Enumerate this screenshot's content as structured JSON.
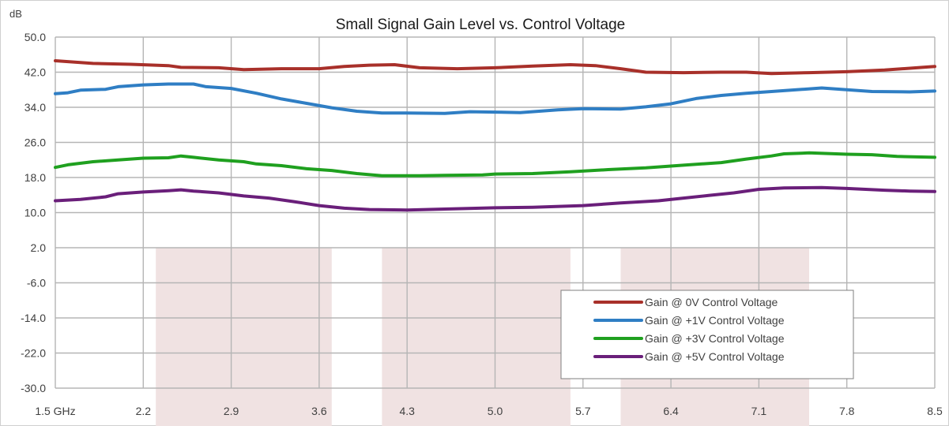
{
  "chart_data": {
    "type": "line",
    "title": "Small Signal Gain Level vs. Control Voltage",
    "ylabel": "dB",
    "xlabel": "",
    "xlim": [
      1.5,
      8.5
    ],
    "ylim": [
      -30.0,
      50.0
    ],
    "grid": true,
    "legend_position": "bottom-right",
    "x_ticks": [
      {
        "value": 1.5,
        "label": "1.5 GHz"
      },
      {
        "value": 2.2,
        "label": "2.2"
      },
      {
        "value": 2.9,
        "label": "2.9"
      },
      {
        "value": 3.6,
        "label": "3.6"
      },
      {
        "value": 4.3,
        "label": "4.3"
      },
      {
        "value": 5.0,
        "label": "5.0"
      },
      {
        "value": 5.7,
        "label": "5.7"
      },
      {
        "value": 6.4,
        "label": "6.4"
      },
      {
        "value": 7.1,
        "label": "7.1"
      },
      {
        "value": 7.8,
        "label": "7.8"
      },
      {
        "value": 8.5,
        "label": "8.5"
      }
    ],
    "y_ticks": [
      {
        "value": 50,
        "label": "50.0"
      },
      {
        "value": 42,
        "label": "42.0"
      },
      {
        "value": 34,
        "label": "34.0"
      },
      {
        "value": 26,
        "label": "26.0"
      },
      {
        "value": 18,
        "label": "18.0"
      },
      {
        "value": 10,
        "label": "10.0"
      },
      {
        "value": 2,
        "label": "2.0"
      },
      {
        "value": -6,
        "label": "-6.0"
      },
      {
        "value": -14,
        "label": "-14.0"
      },
      {
        "value": -22,
        "label": "-22.0"
      },
      {
        "value": -30,
        "label": "-30.0"
      }
    ],
    "shaded_bands": [
      {
        "x": [
          2.3,
          3.7
        ],
        "y": [
          -30,
          2
        ],
        "color": "#f0e2e2"
      },
      {
        "x": [
          4.1,
          5.6
        ],
        "y": [
          -30,
          2
        ],
        "color": "#f0e2e2"
      },
      {
        "x": [
          6.0,
          7.5
        ],
        "y": [
          -30,
          2
        ],
        "color": "#f0e2e2"
      }
    ],
    "series": [
      {
        "name": "Gain @ 0V Control Voltage",
        "color": "#a8302a",
        "points": [
          [
            1.5,
            44.6
          ],
          [
            1.8,
            44.0
          ],
          [
            2.1,
            43.8
          ],
          [
            2.4,
            43.5
          ],
          [
            2.5,
            43.1
          ],
          [
            2.8,
            43.0
          ],
          [
            3.0,
            42.6
          ],
          [
            3.3,
            42.8
          ],
          [
            3.6,
            42.8
          ],
          [
            3.8,
            43.3
          ],
          [
            4.0,
            43.6
          ],
          [
            4.2,
            43.7
          ],
          [
            4.4,
            43.0
          ],
          [
            4.7,
            42.8
          ],
          [
            5.0,
            43.0
          ],
          [
            5.3,
            43.4
          ],
          [
            5.6,
            43.7
          ],
          [
            5.8,
            43.5
          ],
          [
            6.0,
            42.8
          ],
          [
            6.2,
            42.0
          ],
          [
            6.5,
            41.9
          ],
          [
            6.8,
            42.0
          ],
          [
            7.0,
            42.0
          ],
          [
            7.2,
            41.7
          ],
          [
            7.5,
            41.9
          ],
          [
            7.8,
            42.1
          ],
          [
            8.1,
            42.5
          ],
          [
            8.4,
            43.1
          ],
          [
            8.5,
            43.3
          ]
        ]
      },
      {
        "name": "Gain @ +1V Control Voltage",
        "color": "#2f7ec4",
        "points": [
          [
            1.5,
            37.1
          ],
          [
            1.6,
            37.3
          ],
          [
            1.7,
            37.9
          ],
          [
            1.9,
            38.1
          ],
          [
            2.0,
            38.7
          ],
          [
            2.2,
            39.1
          ],
          [
            2.4,
            39.3
          ],
          [
            2.6,
            39.3
          ],
          [
            2.7,
            38.7
          ],
          [
            2.9,
            38.3
          ],
          [
            3.1,
            37.2
          ],
          [
            3.3,
            35.9
          ],
          [
            3.5,
            34.9
          ],
          [
            3.7,
            33.9
          ],
          [
            3.9,
            33.1
          ],
          [
            4.1,
            32.7
          ],
          [
            4.3,
            32.7
          ],
          [
            4.6,
            32.6
          ],
          [
            4.8,
            33.0
          ],
          [
            5.0,
            32.9
          ],
          [
            5.2,
            32.8
          ],
          [
            5.5,
            33.4
          ],
          [
            5.7,
            33.7
          ],
          [
            6.0,
            33.6
          ],
          [
            6.2,
            34.1
          ],
          [
            6.4,
            34.8
          ],
          [
            6.6,
            36.0
          ],
          [
            6.8,
            36.7
          ],
          [
            7.0,
            37.2
          ],
          [
            7.2,
            37.6
          ],
          [
            7.4,
            38.0
          ],
          [
            7.6,
            38.4
          ],
          [
            7.8,
            38.0
          ],
          [
            8.0,
            37.6
          ],
          [
            8.3,
            37.5
          ],
          [
            8.5,
            37.7
          ]
        ]
      },
      {
        "name": "Gain @ +3V Control Voltage",
        "color": "#1fa01f",
        "points": [
          [
            1.5,
            20.3
          ],
          [
            1.6,
            20.9
          ],
          [
            1.8,
            21.6
          ],
          [
            2.0,
            22.0
          ],
          [
            2.2,
            22.4
          ],
          [
            2.4,
            22.5
          ],
          [
            2.5,
            22.9
          ],
          [
            2.6,
            22.6
          ],
          [
            2.8,
            22.0
          ],
          [
            3.0,
            21.6
          ],
          [
            3.1,
            21.1
          ],
          [
            3.3,
            20.7
          ],
          [
            3.5,
            20.0
          ],
          [
            3.7,
            19.6
          ],
          [
            3.9,
            18.9
          ],
          [
            4.1,
            18.4
          ],
          [
            4.4,
            18.4
          ],
          [
            4.6,
            18.5
          ],
          [
            4.9,
            18.6
          ],
          [
            5.0,
            18.8
          ],
          [
            5.3,
            18.9
          ],
          [
            5.6,
            19.3
          ],
          [
            5.9,
            19.8
          ],
          [
            6.2,
            20.2
          ],
          [
            6.5,
            20.8
          ],
          [
            6.8,
            21.4
          ],
          [
            7.0,
            22.2
          ],
          [
            7.2,
            22.9
          ],
          [
            7.3,
            23.4
          ],
          [
            7.5,
            23.6
          ],
          [
            7.8,
            23.3
          ],
          [
            8.0,
            23.2
          ],
          [
            8.2,
            22.8
          ],
          [
            8.5,
            22.6
          ]
        ]
      },
      {
        "name": "Gain @ +5V Control Voltage",
        "color": "#6a1f7a",
        "points": [
          [
            1.5,
            12.7
          ],
          [
            1.7,
            13.0
          ],
          [
            1.9,
            13.6
          ],
          [
            2.0,
            14.3
          ],
          [
            2.2,
            14.7
          ],
          [
            2.4,
            15.0
          ],
          [
            2.5,
            15.2
          ],
          [
            2.6,
            14.9
          ],
          [
            2.8,
            14.5
          ],
          [
            3.0,
            13.8
          ],
          [
            3.2,
            13.3
          ],
          [
            3.4,
            12.5
          ],
          [
            3.6,
            11.6
          ],
          [
            3.8,
            11.0
          ],
          [
            4.0,
            10.7
          ],
          [
            4.3,
            10.6
          ],
          [
            4.6,
            10.8
          ],
          [
            5.0,
            11.1
          ],
          [
            5.3,
            11.2
          ],
          [
            5.7,
            11.6
          ],
          [
            6.0,
            12.2
          ],
          [
            6.3,
            12.7
          ],
          [
            6.5,
            13.3
          ],
          [
            6.7,
            13.9
          ],
          [
            6.9,
            14.5
          ],
          [
            7.1,
            15.3
          ],
          [
            7.3,
            15.6
          ],
          [
            7.6,
            15.7
          ],
          [
            7.8,
            15.5
          ],
          [
            8.1,
            15.1
          ],
          [
            8.3,
            14.9
          ],
          [
            8.5,
            14.8
          ]
        ]
      }
    ]
  }
}
